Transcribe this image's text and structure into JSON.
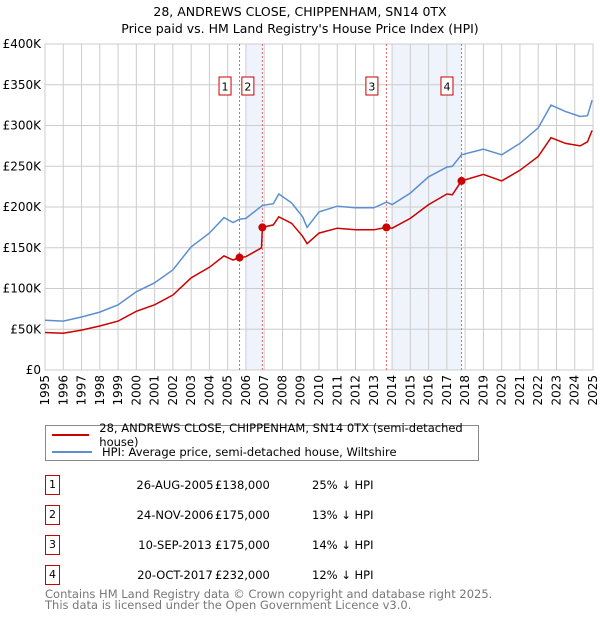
{
  "title_line1": "28, ANDREWS CLOSE, CHIPPENHAM, SN14 0TX",
  "title_line2": "Price paid vs. HM Land Registry's House Price Index (HPI)",
  "legend": {
    "property": "28, ANDREWS CLOSE, CHIPPENHAM, SN14 0TX (semi-detached house)",
    "hpi": "HPI: Average price, semi-detached house, Wiltshire"
  },
  "sales": [
    {
      "num": "1",
      "date": "26-AUG-2005",
      "price": "£138,000",
      "hpi": "25% ↓ HPI"
    },
    {
      "num": "2",
      "date": "24-NOV-2006",
      "price": "£175,000",
      "hpi": "13% ↓ HPI"
    },
    {
      "num": "3",
      "date": "10-SEP-2013",
      "price": "£175,000",
      "hpi": "14% ↓ HPI"
    },
    {
      "num": "4",
      "date": "20-OCT-2017",
      "price": "£232,000",
      "hpi": "12% ↓ HPI"
    }
  ],
  "footer_line1": "Contains HM Land Registry data © Crown copyright and database right 2025.",
  "footer_line2": "This data is licensed under the Open Government Licence v3.0.",
  "colors": {
    "property": "#cc0000",
    "hpi": "#5b8fd0",
    "shade": "#eef3fc",
    "grid": "#cccccc"
  },
  "chart_data": {
    "type": "line",
    "title": "28, ANDREWS CLOSE, CHIPPENHAM, SN14 0TX — Price paid vs. HM Land Registry's House Price Index (HPI)",
    "xlabel": "",
    "ylabel": "",
    "xlim": [
      1995,
      2025
    ],
    "ylim": [
      0,
      400000
    ],
    "grid": true,
    "legend_placement": "below",
    "x_ticks": [
      "1995",
      "1996",
      "1997",
      "1998",
      "1999",
      "2000",
      "2001",
      "2002",
      "2003",
      "2004",
      "2005",
      "2006",
      "2007",
      "2008",
      "2009",
      "2010",
      "2011",
      "2012",
      "2013",
      "2014",
      "2015",
      "2016",
      "2017",
      "2018",
      "2019",
      "2020",
      "2021",
      "2022",
      "2023",
      "2024",
      "2025"
    ],
    "y_ticks": [
      {
        "value": 0,
        "label": "£0"
      },
      {
        "value": 50000,
        "label": "£50K"
      },
      {
        "value": 100000,
        "label": "£100K"
      },
      {
        "value": 150000,
        "label": "£150K"
      },
      {
        "value": 200000,
        "label": "£200K"
      },
      {
        "value": 250000,
        "label": "£250K"
      },
      {
        "value": 300000,
        "label": "£300K"
      },
      {
        "value": 350000,
        "label": "£350K"
      },
      {
        "value": 400000,
        "label": "£400K"
      }
    ],
    "series": [
      {
        "name": "28, ANDREWS CLOSE, CHIPPENHAM, SN14 0TX (semi-detached house)",
        "color": "#cc0000",
        "x": [
          1995,
          1996,
          1997,
          1998,
          1999,
          2000,
          2001,
          2002,
          2003,
          2004,
          2004.8,
          2005.3,
          2005.65,
          2006,
          2006.85,
          2006.9,
          2007.5,
          2007.8,
          2008.5,
          2009.1,
          2009.35,
          2010,
          2011,
          2012,
          2013,
          2013.7,
          2014,
          2015,
          2016,
          2017,
          2017.3,
          2017.8,
          2019,
          2020,
          2021,
          2022,
          2022.7,
          2023.5,
          2024.3,
          2024.7,
          2024.95
        ],
        "values": [
          46000,
          45000,
          49000,
          54000,
          60000,
          72000,
          80000,
          92000,
          113000,
          126000,
          140000,
          135000,
          138000,
          139000,
          150000,
          175000,
          178000,
          188000,
          180000,
          164000,
          155000,
          168000,
          174000,
          172000,
          172000,
          175000,
          174000,
          186000,
          203000,
          216000,
          215000,
          232000,
          240000,
          232000,
          245000,
          262000,
          285000,
          278000,
          275000,
          280000,
          294000
        ]
      },
      {
        "name": "HPI: Average price, semi-detached house, Wiltshire",
        "color": "#5b8fd0",
        "x": [
          1995,
          1996,
          1997,
          1998,
          1999,
          2000,
          2001,
          2002,
          2003,
          2004,
          2004.8,
          2005.3,
          2005.65,
          2006,
          2006.9,
          2007.5,
          2007.8,
          2008.5,
          2009.1,
          2009.35,
          2010,
          2011,
          2012,
          2013,
          2013.7,
          2014,
          2015,
          2016,
          2017,
          2017.3,
          2017.8,
          2019,
          2020,
          2021,
          2022,
          2022.7,
          2023.5,
          2024.3,
          2024.7,
          2024.95
        ],
        "values": [
          61000,
          60000,
          65000,
          71000,
          80000,
          96000,
          107000,
          123000,
          151000,
          168000,
          187000,
          181000,
          185000,
          186000,
          202000,
          204000,
          216000,
          205000,
          188000,
          175000,
          194000,
          201000,
          199000,
          199000,
          206000,
          203000,
          217000,
          237000,
          249000,
          250000,
          264000,
          271000,
          264000,
          278000,
          297000,
          325000,
          317000,
          311000,
          312000,
          331000
        ]
      }
    ],
    "sale_points": [
      {
        "label": "1",
        "x": 2005.65,
        "value": 138000
      },
      {
        "label": "2",
        "x": 2006.9,
        "value": 175000
      },
      {
        "label": "3",
        "x": 2013.69,
        "value": 175000
      },
      {
        "label": "4",
        "x": 2017.8,
        "value": 232000
      }
    ],
    "shaded_ranges": [
      [
        2006.0,
        2006.9
      ],
      [
        2014.0,
        2017.8
      ]
    ]
  }
}
